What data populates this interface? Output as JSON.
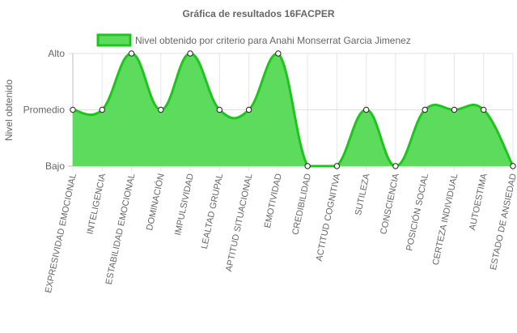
{
  "chart_data": {
    "type": "area",
    "title": "Gráfica de resultados 16FACPER",
    "ylabel": "Nivel obtenido",
    "xlabel": "",
    "y_levels": [
      "Bajo",
      "Promedio",
      "Alto"
    ],
    "ylim": [
      0,
      2
    ],
    "grid": true,
    "legend_position": "top",
    "categories": [
      "EXPRESIVIDAD EMOCIONAL",
      "INTELIGENCIA",
      "ESTABILIDAD EMOCIONAL",
      "DOMINACIÓN",
      "IMPULSIVIDAD",
      "LEALTAD GRUPAL",
      "APTITUD SITUACIONAL",
      "EMOTIVIDAD",
      "CREDIBILIDAD",
      "ACTITUD COGNITIVA",
      "SUTILEZA",
      "CONSCIENCIA",
      "POSICIÓN SOCIAL",
      "CERTEZA INDIVIDUAL",
      "AUTOESTIMA",
      "ESTADO DE ANSIEDAD"
    ],
    "series": [
      {
        "name": "Nivel obtenido por criterio para Anahi Monserrat Garcia Jimenez",
        "values": [
          1,
          1,
          2,
          1,
          2,
          1,
          1,
          2,
          0,
          0,
          1,
          0,
          1,
          1,
          1,
          0
        ],
        "color": "#1fc41f",
        "fill": "#5cdb5c"
      }
    ]
  }
}
